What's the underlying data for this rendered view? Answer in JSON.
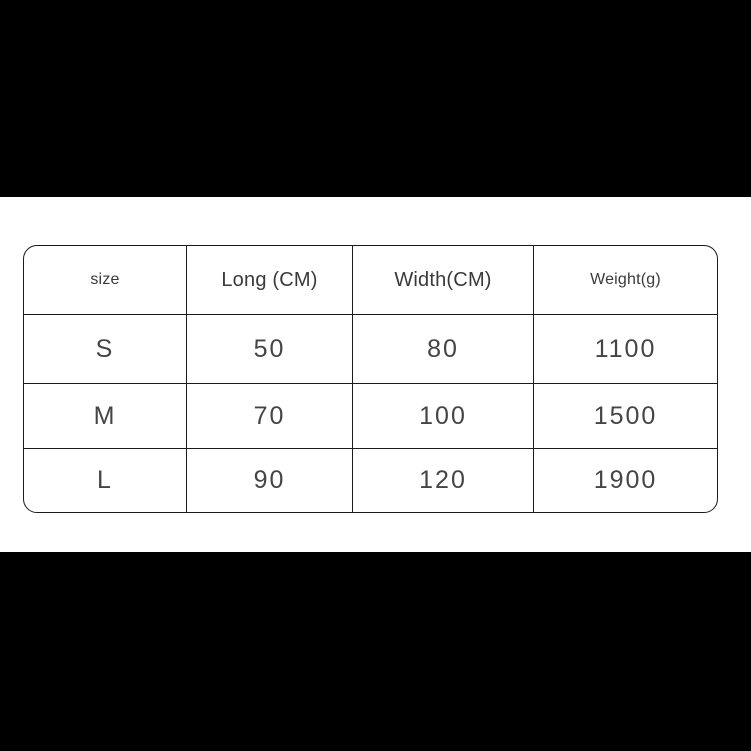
{
  "viewer": {
    "letterbox_color": "#000000",
    "canvas_color": "#ffffff",
    "border_color": "#1c1c1c",
    "header_text_color": "#3a3a3a",
    "data_text_color": "#454545"
  },
  "chart_data": {
    "type": "table",
    "title": "",
    "columns": [
      "size",
      "Long (CM)",
      "Width(CM)",
      "Weight(g)"
    ],
    "rows": [
      [
        "S",
        "50",
        "80",
        "1100"
      ],
      [
        "M",
        "70",
        "100",
        "1500"
      ],
      [
        "L",
        "90",
        "120",
        "1900"
      ]
    ]
  }
}
